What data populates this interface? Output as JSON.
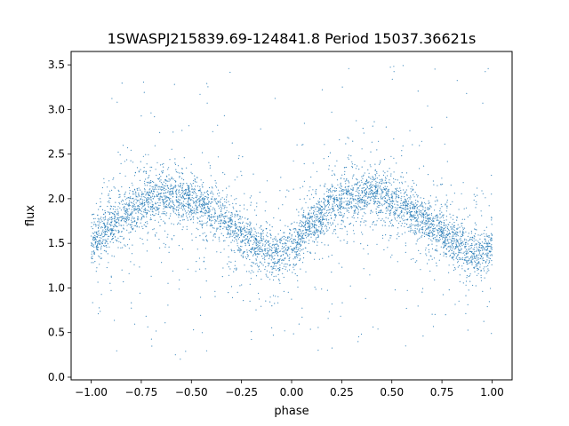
{
  "chart_data": {
    "type": "scatter",
    "title": "1SWASPJ215839.69-124841.8 Period 15037.36621s",
    "xlabel": "phase",
    "ylabel": "flux",
    "xlim": [
      -1.1,
      1.1
    ],
    "ylim": [
      -0.03,
      3.65
    ],
    "xticks": [
      -1.0,
      -0.75,
      -0.5,
      -0.25,
      0.0,
      0.25,
      0.5,
      0.75,
      1.0
    ],
    "xtick_labels": [
      "−1.00",
      "−0.75",
      "−0.50",
      "−0.25",
      "0.00",
      "0.25",
      "0.50",
      "0.75",
      "1.00"
    ],
    "yticks": [
      0.0,
      0.5,
      1.0,
      1.5,
      2.0,
      2.5,
      3.0,
      3.5
    ],
    "ytick_labels": [
      "0.0",
      "0.5",
      "1.0",
      "1.5",
      "2.0",
      "2.5",
      "3.0",
      "3.5"
    ],
    "grid": false,
    "point_color": "#1f77b4",
    "phase_range": [
      -1.0,
      1.0
    ],
    "curve": {
      "phase": [
        -1.0,
        -0.9,
        -0.8,
        -0.7,
        -0.6,
        -0.5,
        -0.4,
        -0.3,
        -0.2,
        -0.1,
        -0.06,
        0.0,
        0.1,
        0.2,
        0.3,
        0.4,
        0.5,
        0.6,
        0.7,
        0.8,
        0.9,
        0.94,
        1.0
      ],
      "flux": [
        1.52,
        1.7,
        1.88,
        2.0,
        2.05,
        1.98,
        1.85,
        1.7,
        1.52,
        1.38,
        1.35,
        1.45,
        1.72,
        1.92,
        2.02,
        2.06,
        1.98,
        1.85,
        1.7,
        1.55,
        1.4,
        1.38,
        1.47
      ]
    }
  }
}
